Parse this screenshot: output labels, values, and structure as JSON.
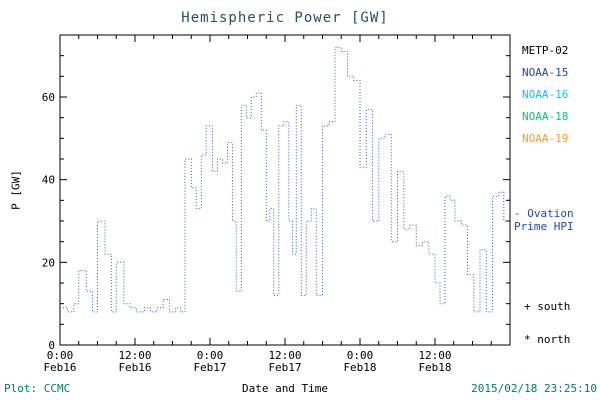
{
  "title": "Hemispheric Power [GW]",
  "ylabel": "P [GW]",
  "colors": {
    "title": "#2f4f5f",
    "axis": "#000000",
    "line": "#3355cc",
    "footer_credit": "#008060",
    "footer_timestamp": "#008060",
    "ovation": "#2244cc"
  },
  "legend": [
    {
      "label": "METP-02",
      "color": "#000000"
    },
    {
      "label": "NOAA-15",
      "color": "#2244cc"
    },
    {
      "label": "NOAA-16",
      "color": "#00ccee"
    },
    {
      "label": "NOAA-18",
      "color": "#00cc77"
    },
    {
      "label": "NOAA-19",
      "color": "#ff9922"
    }
  ],
  "annotations": {
    "ovation": {
      "line1": "- Ovation",
      "line2": "Prime HPI"
    },
    "south": "+ south",
    "north": "* north"
  },
  "footer": {
    "left": "Plot: CCMC",
    "center": "Date and Time",
    "right": "2015/02/18 23:25:10"
  },
  "chart_data": {
    "type": "line",
    "style": "dotted-step",
    "title": "Hemispheric Power [GW]",
    "xlabel": "Date and Time",
    "ylabel": "P [GW]",
    "grid": false,
    "legend_position": "right",
    "ylim": [
      0,
      75
    ],
    "xlim_hours": [
      0,
      72
    ],
    "ytick_labels": [
      0,
      20,
      40,
      60
    ],
    "ytick_major_step": 20,
    "ytick_minor_step": 5,
    "xtick_major_step": 12,
    "xtick_minor_step": 3,
    "xticks": [
      {
        "hour": 0,
        "time": "0:00",
        "date": "Feb16"
      },
      {
        "hour": 12,
        "time": "12:00",
        "date": "Feb16"
      },
      {
        "hour": 24,
        "time": "0:00",
        "date": "Feb17"
      },
      {
        "hour": 36,
        "time": "12:00",
        "date": "Feb17"
      },
      {
        "hour": 48,
        "time": "0:00",
        "date": "Feb18"
      },
      {
        "hour": 60,
        "time": "12:00",
        "date": "Feb18"
      }
    ],
    "series": [
      {
        "name": "Hemispheric Power (NOAA/MetOp passes)",
        "color": "#3355cc",
        "x_hours": [
          0,
          1.2,
          2.2,
          3.0,
          4.2,
          5.2,
          6.0,
          7.2,
          8.2,
          9.0,
          10.2,
          11.2,
          12.2,
          13.5,
          14.5,
          15.5,
          16.5,
          17.5,
          18.5,
          19.3,
          20.0,
          21.0,
          21.8,
          22.6,
          23.4,
          24.4,
          25.2,
          26.0,
          26.8,
          27.6,
          28.2,
          29.0,
          29.8,
          30.6,
          31.4,
          32.2,
          33.0,
          33.6,
          34.2,
          35.0,
          35.8,
          36.6,
          37.2,
          37.8,
          38.6,
          39.4,
          40.2,
          41.0,
          42.0,
          43.0,
          44.0,
          45.0,
          46.0,
          47.0,
          48.0,
          49.0,
          50.0,
          51.0,
          52.0,
          53.0,
          54.0,
          55.0,
          56.0,
          57.0,
          58.0,
          59.0,
          60.0,
          60.8,
          61.6,
          62.4,
          63.2,
          64.2,
          65.2,
          66.2,
          67.2,
          68.2,
          69.2,
          70.2,
          71.0
        ],
        "y_gw": [
          9,
          8,
          10,
          18,
          13,
          8,
          30,
          22,
          8,
          20,
          10,
          9,
          8,
          9,
          8,
          9,
          11,
          8,
          9,
          8,
          45,
          38,
          33,
          46,
          53,
          42,
          45,
          44,
          49,
          30,
          13,
          58,
          55,
          60,
          61,
          52,
          30,
          33,
          12,
          53,
          54,
          30,
          22,
          58,
          12,
          30,
          33,
          12,
          53,
          54,
          72,
          71,
          65,
          64,
          43,
          57,
          30,
          50,
          51,
          25,
          42,
          28,
          29,
          24,
          25,
          22,
          15,
          10,
          36,
          35,
          30,
          29,
          17,
          8,
          23,
          8,
          36,
          37,
          30
        ]
      }
    ]
  }
}
